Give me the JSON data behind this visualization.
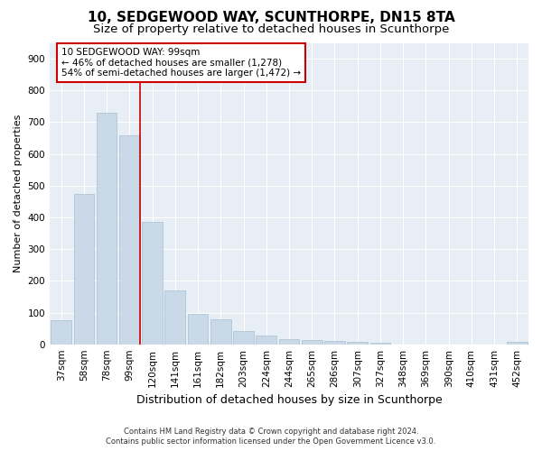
{
  "title": "10, SEDGEWOOD WAY, SCUNTHORPE, DN15 8TA",
  "subtitle": "Size of property relative to detached houses in Scunthorpe",
  "xlabel": "Distribution of detached houses by size in Scunthorpe",
  "ylabel": "Number of detached properties",
  "footer_line1": "Contains HM Land Registry data © Crown copyright and database right 2024.",
  "footer_line2": "Contains public sector information licensed under the Open Government Licence v3.0.",
  "bar_labels": [
    "37sqm",
    "58sqm",
    "78sqm",
    "99sqm",
    "120sqm",
    "141sqm",
    "161sqm",
    "182sqm",
    "203sqm",
    "224sqm",
    "244sqm",
    "265sqm",
    "286sqm",
    "307sqm",
    "327sqm",
    "348sqm",
    "369sqm",
    "390sqm",
    "410sqm",
    "431sqm",
    "452sqm"
  ],
  "bar_values": [
    75,
    475,
    730,
    660,
    385,
    170,
    97,
    78,
    42,
    27,
    15,
    12,
    10,
    7,
    5,
    0,
    0,
    0,
    0,
    0,
    8
  ],
  "bar_color": "#c9d9e8",
  "bar_edge_color": "#a8bfcf",
  "vline_x_index": 3,
  "vline_color": "#cc0000",
  "annotation_text": "10 SEDGEWOOD WAY: 99sqm\n← 46% of detached houses are smaller (1,278)\n54% of semi-detached houses are larger (1,472) →",
  "annotation_box_color": "#ffffff",
  "annotation_box_edge": "#cc0000",
  "ylim": [
    0,
    950
  ],
  "yticks": [
    0,
    100,
    200,
    300,
    400,
    500,
    600,
    700,
    800,
    900
  ],
  "plot_bg_color": "#e8eef5",
  "title_fontsize": 11,
  "subtitle_fontsize": 9.5,
  "ylabel_fontsize": 8,
  "xlabel_fontsize": 9,
  "tick_fontsize": 7.5,
  "footer_fontsize": 6
}
